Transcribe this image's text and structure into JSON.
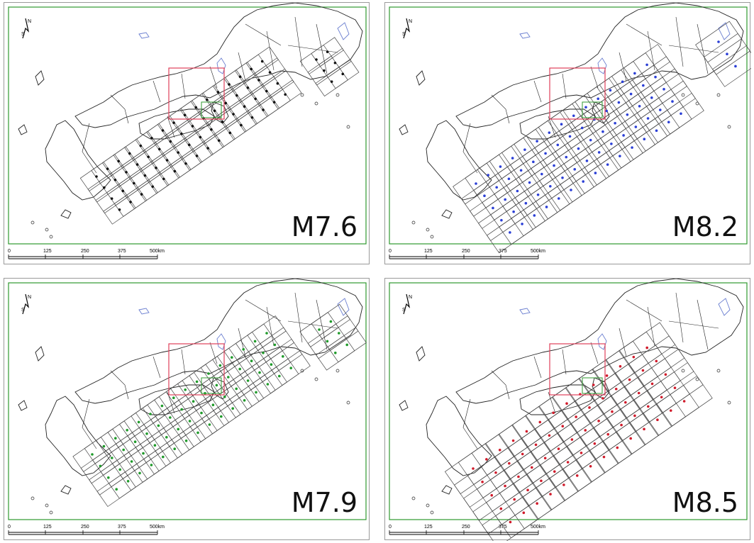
{
  "panels": [
    {
      "magnitude": "M7.6",
      "point_color": "#111111"
    },
    {
      "magnitude": "M8.2",
      "point_color": "#2b3fd6"
    },
    {
      "magnitude": "M7.9",
      "point_color": "#1f9a2a"
    },
    {
      "magnitude": "M8.5",
      "point_color": "#d11a2a"
    }
  ],
  "scale_bar": {
    "labels": [
      "0",
      "125",
      "250",
      "375",
      "500km"
    ]
  },
  "north_arrow": {
    "label_n": "N",
    "label_s": "S"
  },
  "colors": {
    "frame": "#2f9a2f",
    "focus_box": "#e0405a",
    "inner_box": "#2f9a2f",
    "coastline": "#222222",
    "lakes": "#6b7fd0",
    "faults": "#444444"
  }
}
